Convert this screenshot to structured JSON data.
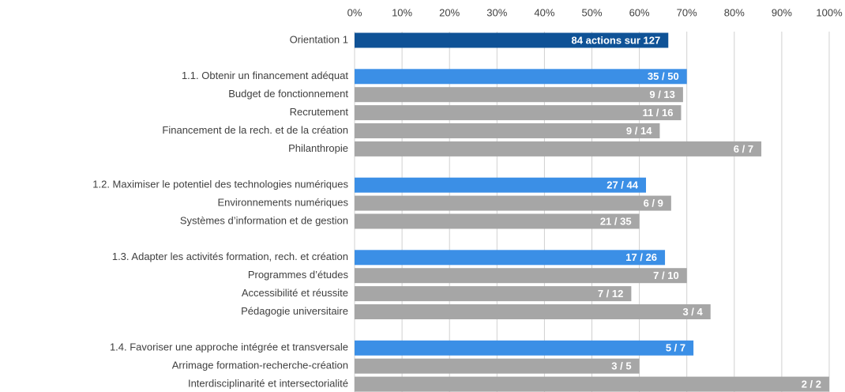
{
  "chart_data": {
    "type": "bar",
    "orientation": "horizontal",
    "categories": [
      "Orientation 1",
      "1.1. Obtenir un financement adéquat",
      "Budget de fonctionnement",
      "Recrutement",
      "Financement de la rech. et de la création",
      "Philanthropie",
      "1.2. Maximiser le potentiel des technologies numériques",
      "Environnements numériques",
      "Systèmes d’information et de gestion",
      "1.3. Adapter les activités formation, rech. et création",
      "Programmes d’études",
      "Accessibilité et réussite",
      "Pédagogie universitaire",
      "1.4. Favoriser une approche intégrée et transversale",
      "Arrimage formation-recherche-création",
      "Interdisciplinarité et intersectorialité"
    ],
    "values": [
      66.1,
      70.0,
      69.2,
      68.8,
      64.3,
      85.7,
      61.4,
      66.7,
      60.0,
      65.4,
      70.0,
      58.3,
      75.0,
      71.4,
      60.0,
      100.0
    ],
    "value_labels": [
      "84 actions sur 127",
      "35 / 50",
      "9 / 13",
      "11 / 16",
      "9 / 14",
      "6 / 7",
      "27 / 44",
      "6 / 9",
      "21 / 35",
      "17 / 26",
      "7 / 10",
      "7 / 12",
      "3 / 4",
      "5 / 7",
      "3 / 5",
      "2 / 2"
    ],
    "colors": [
      "#0f5296",
      "#3b8fe6",
      "#a6a6a6",
      "#a6a6a6",
      "#a6a6a6",
      "#a6a6a6",
      "#3b8fe6",
      "#a6a6a6",
      "#a6a6a6",
      "#3b8fe6",
      "#a6a6a6",
      "#a6a6a6",
      "#a6a6a6",
      "#3b8fe6",
      "#a6a6a6",
      "#a6a6a6"
    ],
    "xlim": [
      0,
      100
    ],
    "xticks": [
      {
        "value": 0,
        "label": "0%"
      },
      {
        "value": 10,
        "label": "10%"
      },
      {
        "value": 20,
        "label": "20%"
      },
      {
        "value": 30,
        "label": "30%"
      },
      {
        "value": 40,
        "label": "40%"
      },
      {
        "value": 50,
        "label": "50%"
      },
      {
        "value": 60,
        "label": "60%"
      },
      {
        "value": 70,
        "label": "70%"
      },
      {
        "value": 80,
        "label": "80%"
      },
      {
        "value": 90,
        "label": "90%"
      },
      {
        "value": 100,
        "label": "100%"
      }
    ],
    "grid": true
  }
}
